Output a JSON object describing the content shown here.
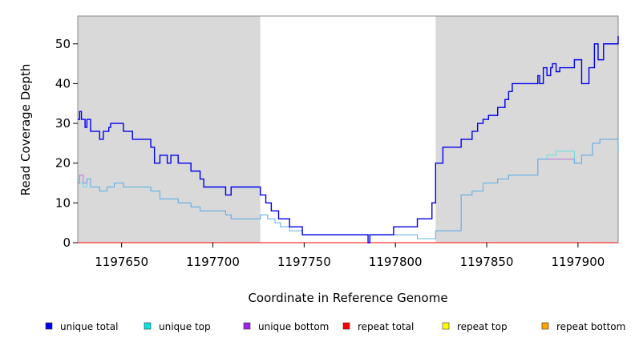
{
  "chart_data": {
    "type": "line",
    "xlabel": "Coordinate in Reference Genome",
    "ylabel": "Read Coverage Depth",
    "xlim": [
      1197626,
      1197922
    ],
    "ylim": [
      0,
      57
    ],
    "x_ticks": [
      1197650,
      1197700,
      1197750,
      1197800,
      1197850,
      1197900
    ],
    "y_ticks": [
      0,
      10,
      20,
      30,
      40,
      50
    ],
    "shaded_regions": [
      {
        "from": 1197626,
        "to": 1197726
      },
      {
        "from": 1197822,
        "to": 1197922
      }
    ],
    "legend_position": "bottom",
    "series": [
      {
        "name": "unique total",
        "color": "#0000ee",
        "x": [
          1197626,
          1197627,
          1197628,
          1197630,
          1197631,
          1197633,
          1197638,
          1197640,
          1197643,
          1197644,
          1197646,
          1197651,
          1197656,
          1197666,
          1197668,
          1197671,
          1197675,
          1197677,
          1197681,
          1197688,
          1197693,
          1197695,
          1197707,
          1197710,
          1197726,
          1197729,
          1197732,
          1197736,
          1197737,
          1197742,
          1197742,
          1197749,
          1197785,
          1197786,
          1197799,
          1197812,
          1197820,
          1197822,
          1197826,
          1197836,
          1197842,
          1197845,
          1197848,
          1197851,
          1197856,
          1197860,
          1197862,
          1197864,
          1197878,
          1197879,
          1197881,
          1197883,
          1197885,
          1197886,
          1197888,
          1197890,
          1197898,
          1197902,
          1197906,
          1197909,
          1197911,
          1197914,
          1197922
        ],
        "values": [
          31,
          33,
          31,
          29,
          31,
          28,
          26,
          28,
          29,
          30,
          30,
          28,
          26,
          24,
          20,
          22,
          20,
          22,
          20,
          18,
          16,
          14,
          12,
          14,
          12,
          10,
          8,
          6,
          6,
          4,
          4,
          2,
          0,
          2,
          4,
          6,
          10,
          20,
          24,
          26,
          28,
          30,
          31,
          32,
          34,
          36,
          38,
          40,
          42,
          40,
          44,
          42,
          44,
          45,
          43,
          44,
          46,
          40,
          44,
          50,
          46,
          50,
          52
        ]
      },
      {
        "name": "unique top",
        "color": "#00e5e5",
        "x": [
          1197626,
          1197627,
          1197629,
          1197631,
          1197633,
          1197638,
          1197642,
          1197646,
          1197651,
          1197666,
          1197671,
          1197681,
          1197688,
          1197693,
          1197707,
          1197710,
          1197726,
          1197730,
          1197734,
          1197737,
          1197742,
          1197749,
          1197812,
          1197822,
          1197836,
          1197842,
          1197848,
          1197856,
          1197862,
          1197878,
          1197883,
          1197888,
          1197898,
          1197902,
          1197908,
          1197912,
          1197922
        ],
        "values": [
          16,
          15,
          14,
          16,
          14,
          13,
          14,
          15,
          14,
          13,
          11,
          10,
          9,
          8,
          7,
          6,
          7,
          6,
          5,
          4,
          3,
          2,
          1,
          3,
          12,
          13,
          15,
          16,
          17,
          21,
          22,
          23,
          20,
          22,
          25,
          26,
          23
        ]
      },
      {
        "name": "unique bottom",
        "color": "#a020f0",
        "x": [
          1197626,
          1197627,
          1197629,
          1197631,
          1197633,
          1197638,
          1197642,
          1197646,
          1197651,
          1197666,
          1197671,
          1197681,
          1197688,
          1197693,
          1197707,
          1197710,
          1197726,
          1197730,
          1197734,
          1197737,
          1197742,
          1197749,
          1197812,
          1197822,
          1197836,
          1197842,
          1197848,
          1197856,
          1197862,
          1197878,
          1197883,
          1197888,
          1197898,
          1197902,
          1197908,
          1197912,
          1197922
        ],
        "values": [
          15,
          17,
          15,
          16,
          14,
          13,
          14,
          15,
          14,
          13,
          11,
          10,
          9,
          8,
          7,
          6,
          7,
          6,
          5,
          4,
          3,
          2,
          1,
          3,
          12,
          13,
          15,
          16,
          17,
          21,
          21,
          21,
          20,
          22,
          25,
          26,
          23
        ]
      },
      {
        "name": "repeat total",
        "color": "#ff0000",
        "x": [
          1197626,
          1197922
        ],
        "values": [
          0,
          0
        ]
      },
      {
        "name": "repeat top",
        "color": "#ffff00",
        "x": [
          1197626,
          1197922
        ],
        "values": [
          0,
          0
        ]
      },
      {
        "name": "repeat bottom",
        "color": "#ffa500",
        "x": [
          1197626,
          1197922
        ],
        "values": [
          0,
          0
        ]
      }
    ]
  }
}
